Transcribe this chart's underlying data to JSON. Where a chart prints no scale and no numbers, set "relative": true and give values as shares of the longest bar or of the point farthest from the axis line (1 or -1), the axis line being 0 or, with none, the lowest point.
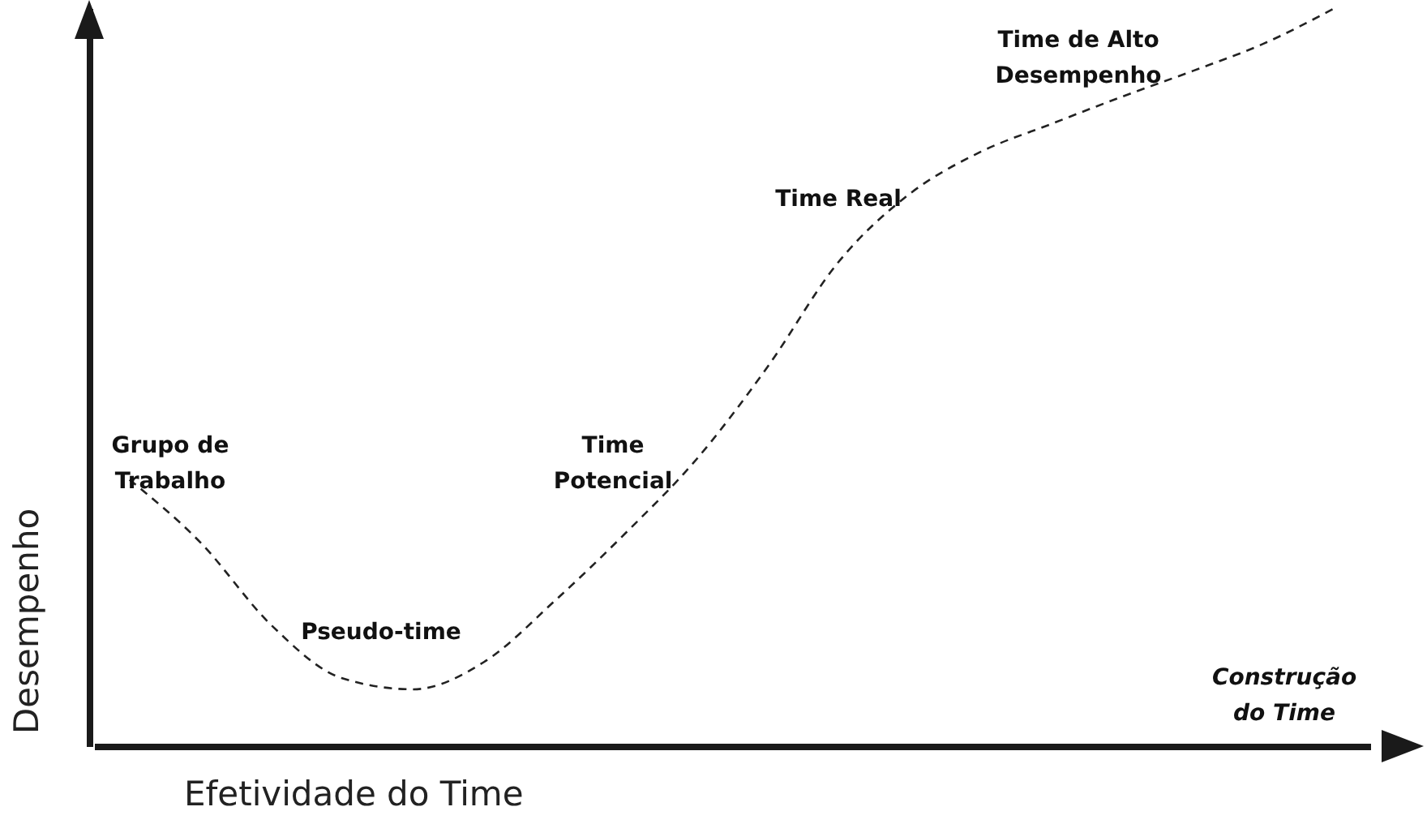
{
  "chart_data": {
    "type": "line",
    "relative": true,
    "xlabel": "Efetividade do Time",
    "ylabel": "Desempenho",
    "categories": [
      null,
      null,
      null,
      null,
      null,
      null,
      null,
      null,
      null,
      null,
      null,
      null,
      null,
      null,
      null,
      null,
      null,
      null
    ],
    "series": [
      {
        "color": "#222222",
        "values": [
          0.361,
          0.276,
          0.164,
          0.092,
          0.077,
          0.114,
          0.197,
          0.289,
          0.389,
          0.514,
          0.656,
          0.748,
          0.805,
          0.843,
          0.88,
          0.915,
          0.952,
          1
        ]
      }
    ],
    "line_style": "dashed",
    "marker": "none",
    "grid": false,
    "annotations": [
      "Grupo de Trabalho",
      "Pseudo-time",
      "Time Potencial",
      "Time Real",
      "Time de Alto Desempenho",
      "Construção do Time"
    ]
  }
}
